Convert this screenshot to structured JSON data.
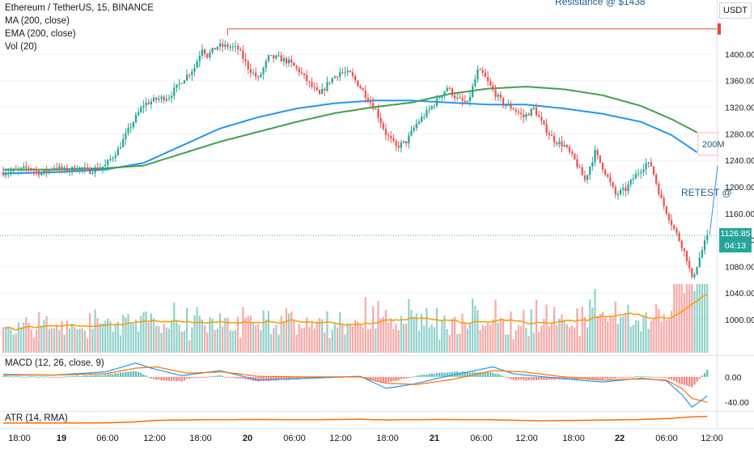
{
  "header": {
    "title": "Ethereum / TetherUS, 15, BINANCE",
    "indicators": [
      "MA (200, close)",
      "EMA (200, close)",
      "Vol (20)"
    ]
  },
  "panes": {
    "macd_label": "MACD (12, 26, close, 9)",
    "atr_label": "ATR (14, RMA)"
  },
  "price_scale": {
    "unit": "USDT",
    "current_price": "1126.85",
    "countdown": "04:13"
  },
  "annotations": {
    "resistance": "Resistance @ $1438",
    "ma_label": "200M",
    "retest": "RETEST @"
  },
  "colors": {
    "up": "#26a69a",
    "down": "#ef5350",
    "ma": "#2196f3",
    "ema": "#43a047",
    "macd_line": "#2196f3",
    "signal_line": "#ff6d00",
    "atr": "#ff6d00",
    "volume_ma": "#ff9800",
    "resistance": "#f44336"
  },
  "chart_data": [
    {
      "type": "candlestick",
      "title": "Ethereum / TetherUS, 15, BINANCE",
      "y_ticks": [
        1000,
        1040,
        1080,
        1120,
        1160,
        1200,
        1240,
        1280,
        1320,
        1360,
        1400
      ],
      "ylim": [
        950,
        1445
      ],
      "x_ticks": [
        "18:00",
        "19",
        "06:00",
        "12:00",
        "18:00",
        "20",
        "06:00",
        "12:00",
        "18:00",
        "21",
        "06:00",
        "12:00",
        "18:00",
        "22",
        "06:00",
        "12:00"
      ],
      "resistance_level": 1438,
      "current_price": 1126.85,
      "close_path": [
        [
          0,
          1222
        ],
        [
          5,
          1224
        ],
        [
          10,
          1229
        ],
        [
          15,
          1220
        ],
        [
          20,
          1230
        ],
        [
          24,
          1225
        ],
        [
          30,
          1228
        ],
        [
          34,
          1224
        ],
        [
          40,
          1232
        ],
        [
          45,
          1256
        ],
        [
          50,
          1292
        ],
        [
          55,
          1324
        ],
        [
          60,
          1332
        ],
        [
          65,
          1336
        ],
        [
          70,
          1360
        ],
        [
          75,
          1380
        ],
        [
          78,
          1410
        ],
        [
          80,
          1398
        ],
        [
          84,
          1412
        ],
        [
          88,
          1412
        ],
        [
          92,
          1408
        ],
        [
          96,
          1380
        ],
        [
          100,
          1362
        ],
        [
          104,
          1395
        ],
        [
          108,
          1394
        ],
        [
          112,
          1388
        ],
        [
          116,
          1375
        ],
        [
          120,
          1355
        ],
        [
          124,
          1338
        ],
        [
          128,
          1360
        ],
        [
          132,
          1373
        ],
        [
          136,
          1370
        ],
        [
          140,
          1350
        ],
        [
          146,
          1316
        ],
        [
          150,
          1280
        ],
        [
          154,
          1260
        ],
        [
          158,
          1268
        ],
        [
          162,
          1295
        ],
        [
          166,
          1312
        ],
        [
          170,
          1330
        ],
        [
          174,
          1350
        ],
        [
          178,
          1332
        ],
        [
          182,
          1325
        ],
        [
          186,
          1374
        ],
        [
          188,
          1370
        ],
        [
          192,
          1345
        ],
        [
          196,
          1325
        ],
        [
          200,
          1318
        ],
        [
          204,
          1305
        ],
        [
          208,
          1318
        ],
        [
          212,
          1290
        ],
        [
          216,
          1270
        ],
        [
          220,
          1262
        ],
        [
          224,
          1240
        ],
        [
          228,
          1210
        ],
        [
          232,
          1252
        ],
        [
          236,
          1222
        ],
        [
          240,
          1188
        ],
        [
          244,
          1196
        ],
        [
          248,
          1218
        ],
        [
          252,
          1235
        ],
        [
          254,
          1232
        ],
        [
          258,
          1180
        ],
        [
          262,
          1145
        ],
        [
          266,
          1112
        ],
        [
          268,
          1092
        ],
        [
          270,
          1060
        ],
        [
          272,
          1082
        ],
        [
          276,
          1126.85
        ]
      ],
      "series": [
        {
          "name": "MA (200, close)",
          "values": [
            [
              0,
              1220
            ],
            [
              20,
              1222
            ],
            [
              40,
              1226
            ],
            [
              55,
              1236
            ],
            [
              70,
              1262
            ],
            [
              85,
              1288
            ],
            [
              100,
              1305
            ],
            [
              115,
              1318
            ],
            [
              130,
              1326
            ],
            [
              145,
              1330
            ],
            [
              160,
              1330
            ],
            [
              175,
              1327
            ],
            [
              190,
              1324
            ],
            [
              205,
              1324
            ],
            [
              220,
              1318
            ],
            [
              235,
              1310
            ],
            [
              250,
              1298
            ],
            [
              262,
              1278
            ],
            [
              272,
              1252
            ]
          ]
        },
        {
          "name": "EMA (200, close)",
          "values": [
            [
              0,
              1226
            ],
            [
              20,
              1226
            ],
            [
              40,
              1228
            ],
            [
              55,
              1232
            ],
            [
              70,
              1250
            ],
            [
              85,
              1268
            ],
            [
              100,
              1283
            ],
            [
              115,
              1298
            ],
            [
              130,
              1311
            ],
            [
              145,
              1320
            ],
            [
              160,
              1327
            ],
            [
              175,
              1340
            ],
            [
              190,
              1348
            ],
            [
              205,
              1351
            ],
            [
              220,
              1347
            ],
            [
              235,
              1338
            ],
            [
              250,
              1322
            ],
            [
              262,
              1302
            ],
            [
              272,
              1282
            ]
          ]
        }
      ]
    },
    {
      "type": "line",
      "title": "MACD (12, 26, close, 9)",
      "y_ticks": [
        0,
        -40
      ],
      "ylim": [
        -54,
        32
      ],
      "series": [
        {
          "name": "MACD",
          "values": [
            [
              0,
              4
            ],
            [
              20,
              3
            ],
            [
              40,
              8
            ],
            [
              52,
              22
            ],
            [
              58,
              14
            ],
            [
              70,
              2
            ],
            [
              85,
              10
            ],
            [
              100,
              -5
            ],
            [
              120,
              -2
            ],
            [
              140,
              1
            ],
            [
              150,
              -18
            ],
            [
              160,
              -12
            ],
            [
              175,
              2
            ],
            [
              192,
              16
            ],
            [
              200,
              5
            ],
            [
              220,
              -3
            ],
            [
              235,
              -8
            ],
            [
              250,
              -2
            ],
            [
              260,
              -6
            ],
            [
              266,
              -28
            ],
            [
              270,
              -48
            ],
            [
              276,
              -30
            ]
          ]
        },
        {
          "name": "Signal",
          "values": [
            [
              0,
              3
            ],
            [
              20,
              3
            ],
            [
              40,
              5
            ],
            [
              52,
              14
            ],
            [
              60,
              16
            ],
            [
              72,
              6
            ],
            [
              86,
              8
            ],
            [
              100,
              1
            ],
            [
              120,
              0
            ],
            [
              140,
              0
            ],
            [
              150,
              -10
            ],
            [
              162,
              -12
            ],
            [
              176,
              -4
            ],
            [
              192,
              10
            ],
            [
              204,
              8
            ],
            [
              220,
              0
            ],
            [
              235,
              -5
            ],
            [
              250,
              -3
            ],
            [
              260,
              -5
            ],
            [
              266,
              -18
            ],
            [
              270,
              -34
            ],
            [
              276,
              -40
            ]
          ]
        }
      ]
    },
    {
      "type": "line",
      "title": "ATR (14, RMA)",
      "series": [
        {
          "name": "ATR",
          "values": [
            [
              0,
              4.5
            ],
            [
              40,
              4.6
            ],
            [
              50,
              5.5
            ],
            [
              60,
              7.5
            ],
            [
              80,
              8.2
            ],
            [
              100,
              8.4
            ],
            [
              120,
              8.2
            ],
            [
              140,
              8.6
            ],
            [
              150,
              8.0
            ],
            [
              170,
              8.4
            ],
            [
              190,
              8.2
            ],
            [
              210,
              7.0
            ],
            [
              230,
              7.6
            ],
            [
              250,
              8.4
            ],
            [
              262,
              9.6
            ],
            [
              270,
              11.4
            ],
            [
              276,
              11.8
            ]
          ]
        }
      ]
    }
  ]
}
